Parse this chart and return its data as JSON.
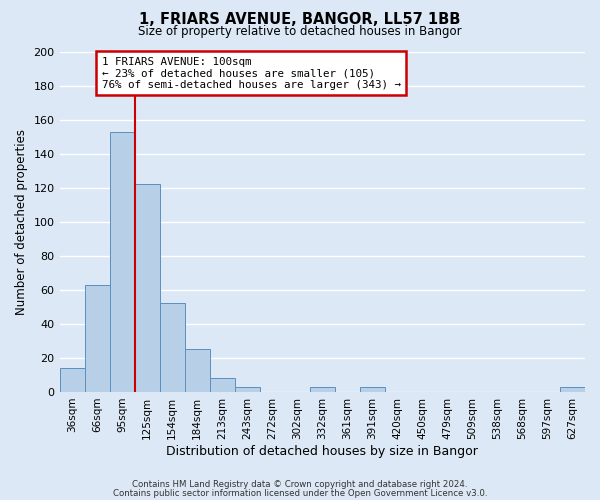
{
  "title": "1, FRIARS AVENUE, BANGOR, LL57 1BB",
  "subtitle": "Size of property relative to detached houses in Bangor",
  "xlabel": "Distribution of detached houses by size in Bangor",
  "ylabel": "Number of detached properties",
  "bin_labels": [
    "36sqm",
    "66sqm",
    "95sqm",
    "125sqm",
    "154sqm",
    "184sqm",
    "213sqm",
    "243sqm",
    "272sqm",
    "302sqm",
    "332sqm",
    "361sqm",
    "391sqm",
    "420sqm",
    "450sqm",
    "479sqm",
    "509sqm",
    "538sqm",
    "568sqm",
    "597sqm",
    "627sqm"
  ],
  "bar_values": [
    14,
    63,
    153,
    122,
    52,
    25,
    8,
    3,
    0,
    0,
    3,
    0,
    3,
    0,
    0,
    0,
    0,
    0,
    0,
    0,
    3
  ],
  "bar_color": "#b8cfe8",
  "bar_edge_color": "#5a8fc0",
  "property_line_color": "#cc0000",
  "annotation_title": "1 FRIARS AVENUE: 100sqm",
  "annotation_line1": "← 23% of detached houses are smaller (105)",
  "annotation_line2": "76% of semi-detached houses are larger (343) →",
  "annotation_box_color": "#cc0000",
  "ylim": [
    0,
    200
  ],
  "yticks": [
    0,
    20,
    40,
    60,
    80,
    100,
    120,
    140,
    160,
    180,
    200
  ],
  "footer1": "Contains HM Land Registry data © Crown copyright and database right 2024.",
  "footer2": "Contains public sector information licensed under the Open Government Licence v3.0.",
  "background_color": "#dce8f5",
  "grid_color": "#ffffff"
}
